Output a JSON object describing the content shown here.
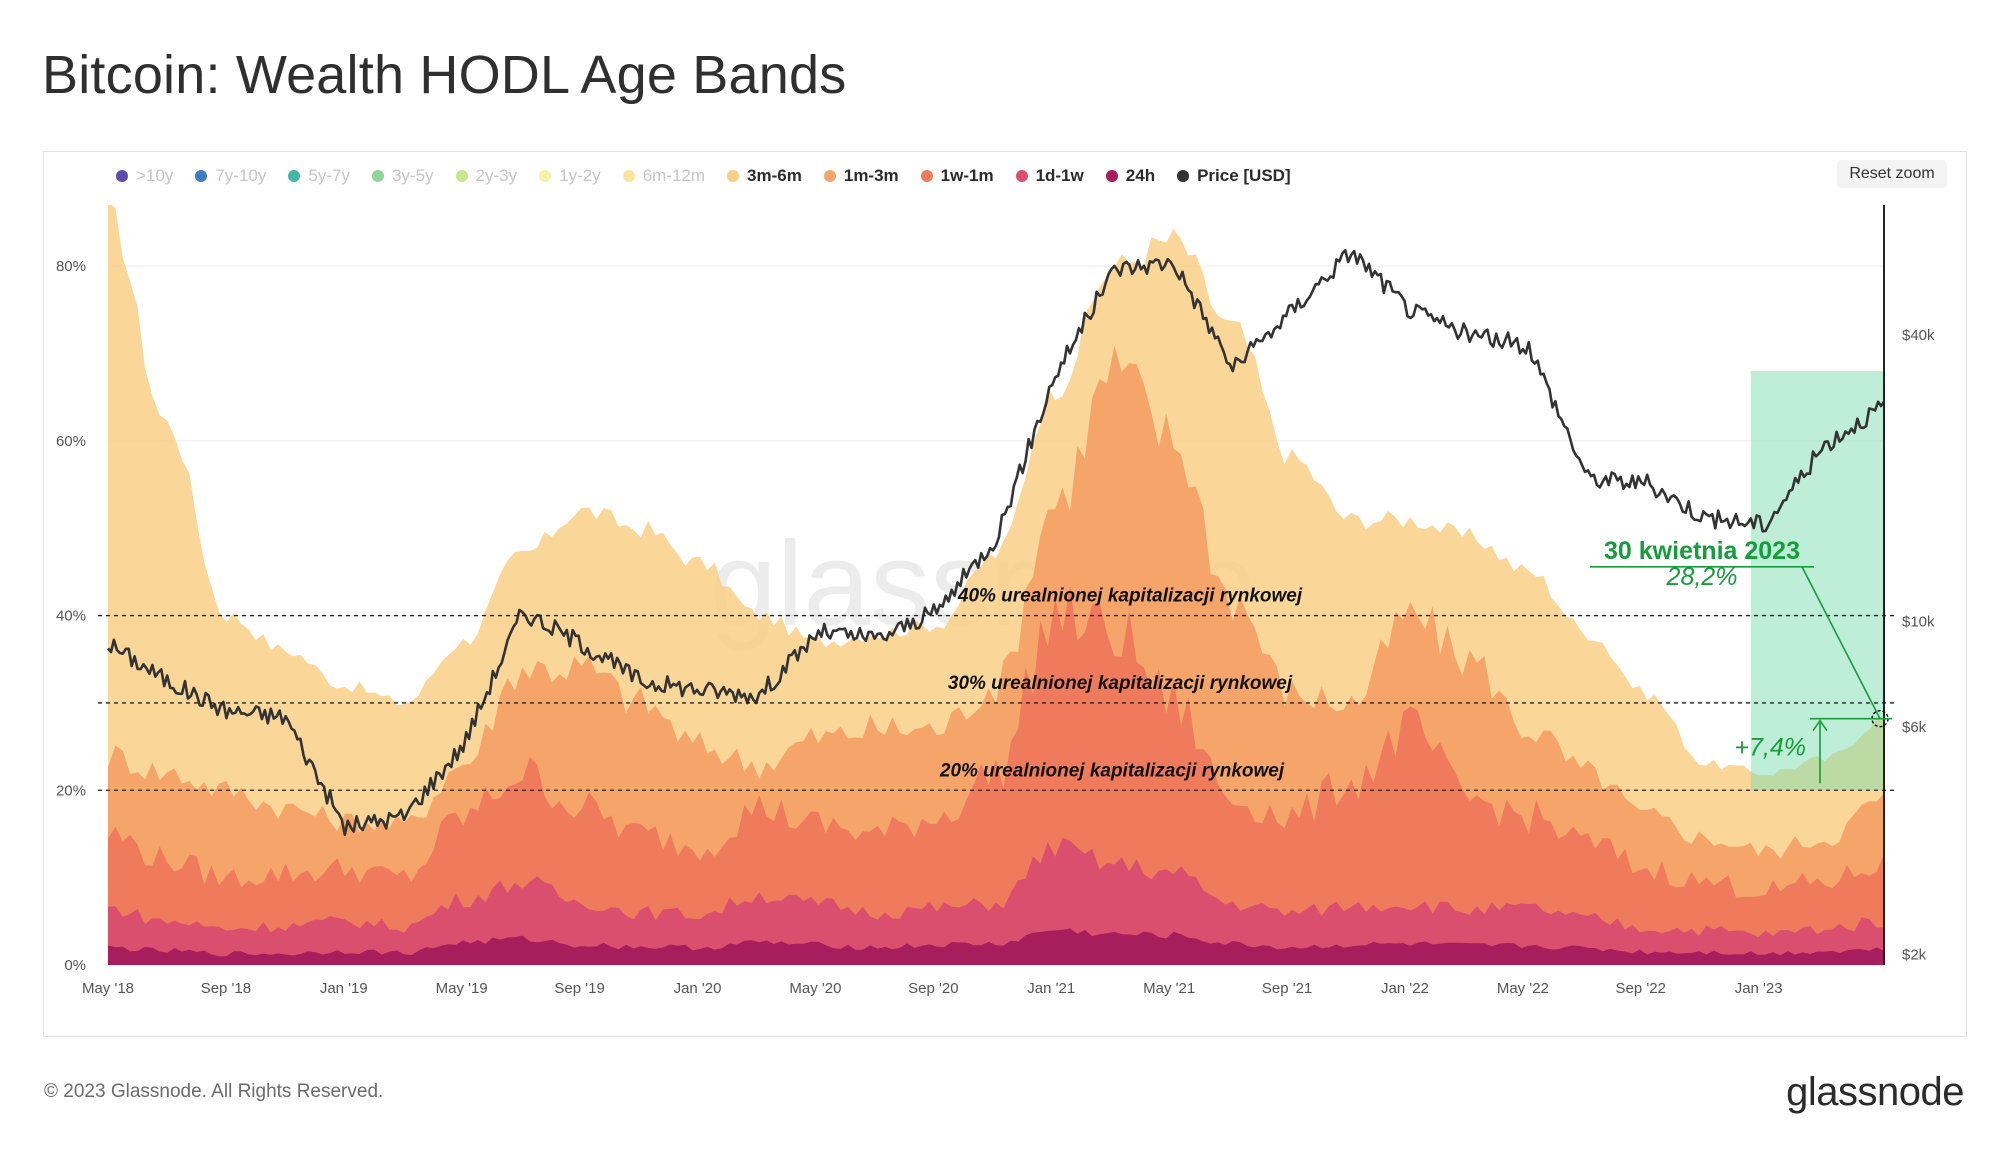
{
  "title": "Bitcoin: Wealth HODL Age Bands",
  "reset_zoom": "Reset zoom",
  "watermark": "glassnode",
  "footer": {
    "copyright": "© 2023 Glassnode. All Rights Reserved.",
    "logo": "glassnode"
  },
  "legend": [
    {
      "label": ">10y",
      "color": "#5b4ea8",
      "active": false
    },
    {
      "label": "7y-10y",
      "color": "#3f7dc2",
      "active": false
    },
    {
      "label": "5y-7y",
      "color": "#3fb8a8",
      "active": false
    },
    {
      "label": "3y-5y",
      "color": "#8fd49a",
      "active": false
    },
    {
      "label": "2y-3y",
      "color": "#c8e88c",
      "active": false
    },
    {
      "label": "1y-2y",
      "color": "#f6f2a8",
      "active": false
    },
    {
      "label": "6m-12m",
      "color": "#fbe3a0",
      "active": false
    },
    {
      "label": "3m-6m",
      "color": "#f9cf86",
      "active": true
    },
    {
      "label": "1m-3m",
      "color": "#f6a56a",
      "active": true
    },
    {
      "label": "1w-1m",
      "color": "#ef7b5c",
      "active": true
    },
    {
      "label": "1d-1w",
      "color": "#da4f6e",
      "active": true
    },
    {
      "label": "24h",
      "color": "#a81d5b",
      "active": true
    },
    {
      "label": "Price [USD]",
      "color": "#333333",
      "active": true
    }
  ],
  "chart_data": {
    "type": "area",
    "title": "Bitcoin: Wealth HODL Age Bands",
    "x_ticks": [
      "May '18",
      "Sep '18",
      "Jan '19",
      "May '19",
      "Sep '19",
      "Jan '20",
      "May '20",
      "Sep '20",
      "Jan '21",
      "May '21",
      "Sep '21",
      "Jan '22",
      "May '22",
      "Sep '22",
      "Jan '23"
    ],
    "y_left_ticks": [
      "0%",
      "20%",
      "40%",
      "60%",
      "80%"
    ],
    "y_left_range": [
      0,
      87
    ],
    "y_right_ticks": [
      "$2k",
      "$6k",
      "$10k",
      "$40k"
    ],
    "y_right_scale": "log",
    "y_right_range": [
      1900,
      75000
    ],
    "grid": true,
    "legend_position": "top-left",
    "x": [
      "2018-05",
      "2018-07",
      "2018-09",
      "2018-11",
      "2019-01",
      "2019-03",
      "2019-05",
      "2019-07",
      "2019-09",
      "2019-11",
      "2020-01",
      "2020-03",
      "2020-05",
      "2020-07",
      "2020-09",
      "2020-11",
      "2021-01",
      "2021-03",
      "2021-05",
      "2021-07",
      "2021-09",
      "2021-11",
      "2022-01",
      "2022-03",
      "2022-05",
      "2022-07",
      "2022-09",
      "2022-11",
      "2023-01",
      "2023-03",
      "2023-04"
    ],
    "series": [
      {
        "name": "24h",
        "color": "#a81d5b",
        "values": [
          2.0,
          1.6,
          1.3,
          1.3,
          1.6,
          1.4,
          2.6,
          3.0,
          2.3,
          2.1,
          2.0,
          2.6,
          2.3,
          2.0,
          2.3,
          2.4,
          4.0,
          3.5,
          3.4,
          2.4,
          2.0,
          2.3,
          2.4,
          2.2,
          2.2,
          1.9,
          1.5,
          1.5,
          1.3,
          1.6,
          1.8
        ]
      },
      {
        "name": "1d-1w",
        "color": "#da4f6e",
        "values": [
          6.5,
          5.0,
          4.2,
          4.5,
          5.0,
          4.4,
          7.5,
          9.5,
          7.2,
          6.0,
          5.8,
          8.0,
          7.0,
          6.0,
          6.5,
          7.0,
          13.5,
          11.5,
          10.5,
          7.0,
          6.0,
          6.8,
          7.0,
          6.3,
          6.5,
          5.3,
          4.2,
          4.0,
          3.5,
          4.2,
          5.0
        ]
      },
      {
        "name": "1w-1m",
        "color": "#ef7b5c",
        "values": [
          15.0,
          12.0,
          10.0,
          10.5,
          11.0,
          10.0,
          17.0,
          22.0,
          18.0,
          15.0,
          13.5,
          18.0,
          16.0,
          15.0,
          17.0,
          22.0,
          40.0,
          38.0,
          30.0,
          19.0,
          17.0,
          21.0,
          27.0,
          19.0,
          17.0,
          14.0,
          11.0,
          9.5,
          8.5,
          9.5,
          11.5
        ]
      },
      {
        "name": "1m-3m",
        "color": "#f6a56a",
        "values": [
          24.0,
          22.0,
          20.0,
          18.0,
          16.5,
          16.0,
          23.0,
          34.0,
          34.0,
          30.0,
          25.0,
          23.0,
          26.0,
          27.0,
          27.0,
          32.0,
          53.0,
          68.0,
          60.0,
          42.0,
          31.0,
          30.0,
          40.0,
          35.0,
          27.0,
          22.0,
          17.0,
          14.5,
          13.0,
          14.5,
          19.0
        ]
      },
      {
        "name": "3m-6m",
        "color": "#f9cf86",
        "values": [
          86.0,
          62.0,
          40.0,
          36.0,
          32.0,
          30.0,
          37.0,
          47.0,
          52.0,
          50.0,
          46.0,
          40.0,
          37.0,
          38.0,
          39.0,
          47.0,
          66.0,
          80.0,
          83.0,
          73.0,
          58.0,
          51.0,
          51.0,
          49.0,
          45.0,
          38.0,
          31.0,
          23.0,
          22.0,
          23.5,
          28.2
        ]
      },
      {
        "name": "Price [USD]",
        "color": "#333333",
        "axis": "right",
        "values": [
          9000,
          7500,
          6500,
          6300,
          3700,
          3900,
          5500,
          10500,
          9000,
          7500,
          7200,
          7000,
          9500,
          9200,
          10500,
          15000,
          33000,
          55000,
          57000,
          34000,
          45000,
          60000,
          45000,
          40000,
          38000,
          20000,
          19500,
          16500,
          16000,
          23500,
          28500
        ]
      }
    ],
    "reference_lines": [
      {
        "y": 40,
        "label": "40% urealnionej kapitalizacji rynkowej"
      },
      {
        "y": 30,
        "label": "30% urealnionej kapitalizacji rynkowej"
      },
      {
        "y": 20,
        "label": "20% urealnionej kapitalizacji rynkowej"
      }
    ],
    "annotation": {
      "date": "30 kwietnia 2023",
      "value": "28,2%",
      "change": "+7,4%",
      "highlight_color": "#7dddb0"
    }
  }
}
